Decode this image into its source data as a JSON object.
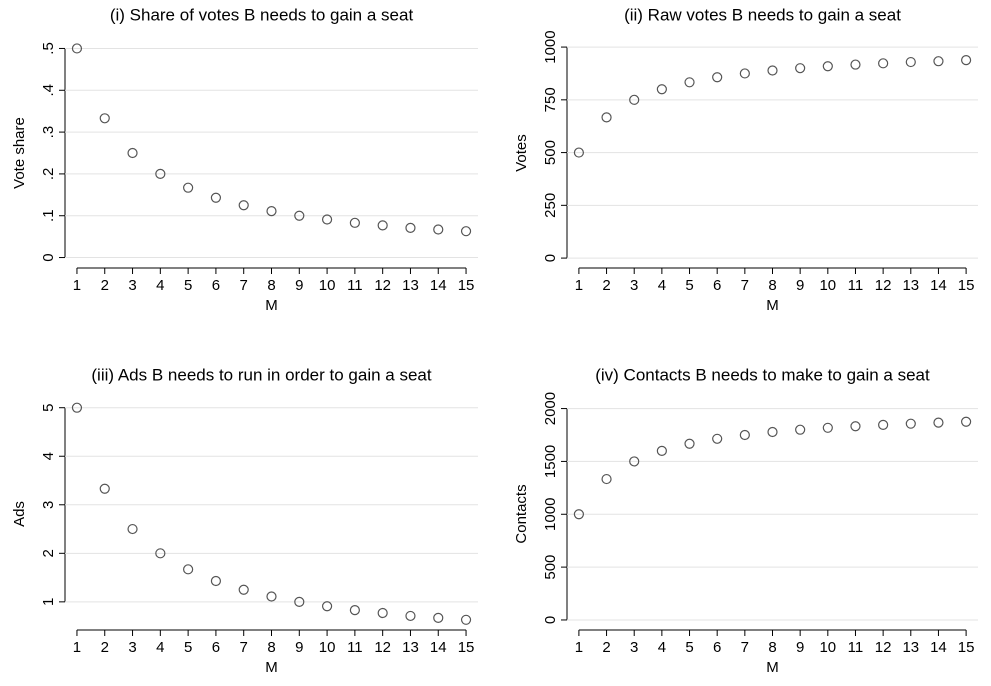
{
  "chart_data": [
    {
      "type": "scatter",
      "title": "(i) Share of votes B needs to gain a seat",
      "xlabel": "M",
      "ylabel": "Vote share",
      "x": [
        1,
        2,
        3,
        4,
        5,
        6,
        7,
        8,
        9,
        10,
        11,
        12,
        13,
        14,
        15
      ],
      "series": [
        {
          "color": "#555555",
          "values": [
            0.5,
            0.333,
            0.25,
            0.2,
            0.167,
            0.143,
            0.125,
            0.111,
            0.1,
            0.091,
            0.083,
            0.077,
            0.071,
            0.067,
            0.063
          ]
        }
      ],
      "xlim": [
        0.57,
        15.43
      ],
      "xticks": [
        1,
        2,
        3,
        4,
        5,
        6,
        7,
        8,
        9,
        10,
        11,
        12,
        13,
        14,
        15
      ],
      "ylim": [
        -0.025,
        0.525
      ],
      "yticks": [
        0,
        {
          "value": 0.1,
          "label": ".1"
        },
        {
          "value": 0.2,
          "label": ".2"
        },
        {
          "value": 0.3,
          "label": ".3"
        },
        {
          "value": 0.4,
          "label": ".4"
        },
        {
          "value": 0.5,
          "label": ".5"
        }
      ],
      "grid": true
    },
    {
      "type": "scatter",
      "title": "(ii) Raw votes B needs to gain a seat",
      "xlabel": "M",
      "ylabel": "Votes",
      "x": [
        1,
        2,
        3,
        4,
        5,
        6,
        7,
        8,
        9,
        10,
        11,
        12,
        13,
        14,
        15
      ],
      "series": [
        {
          "color": "#555555",
          "values": [
            500,
            667,
            750,
            800,
            833,
            857,
            875,
            889,
            900,
            909,
            917,
            923,
            929,
            933,
            938
          ]
        }
      ],
      "xlim": [
        0.57,
        15.43
      ],
      "xticks": [
        1,
        2,
        3,
        4,
        5,
        6,
        7,
        8,
        9,
        10,
        11,
        12,
        13,
        14,
        15
      ],
      "ylim": [
        -47,
        1043
      ],
      "yticks": [
        0,
        250,
        500,
        750,
        1000
      ],
      "grid": true
    },
    {
      "type": "scatter",
      "title": "(iii) Ads B needs to run in order to gain a seat",
      "xlabel": "M",
      "ylabel": "Ads",
      "x": [
        1,
        2,
        3,
        4,
        5,
        6,
        7,
        8,
        9,
        10,
        11,
        12,
        13,
        14,
        15
      ],
      "series": [
        {
          "color": "#555555",
          "values": [
            5,
            3.33,
            2.5,
            2,
            1.67,
            1.43,
            1.25,
            1.11,
            1,
            0.91,
            0.83,
            0.77,
            0.71,
            0.67,
            0.63
          ]
        }
      ],
      "xlim": [
        0.57,
        15.43
      ],
      "xticks": [
        1,
        2,
        3,
        4,
        5,
        6,
        7,
        8,
        9,
        10,
        11,
        12,
        13,
        14,
        15
      ],
      "ylim": [
        0.42,
        5.2
      ],
      "yticks": [
        1,
        2,
        3,
        4,
        5
      ],
      "grid": true
    },
    {
      "type": "scatter",
      "title": "(iv) Contacts B needs to make to gain a seat",
      "xlabel": "M",
      "ylabel": "Contacts",
      "x": [
        1,
        2,
        3,
        4,
        5,
        6,
        7,
        8,
        9,
        10,
        11,
        12,
        13,
        14,
        15
      ],
      "series": [
        {
          "color": "#555555",
          "values": [
            1000,
            1333,
            1500,
            1600,
            1667,
            1714,
            1750,
            1778,
            1800,
            1818,
            1833,
            1846,
            1857,
            1867,
            1875
          ]
        }
      ],
      "xlim": [
        0.57,
        15.43
      ],
      "xticks": [
        1,
        2,
        3,
        4,
        5,
        6,
        7,
        8,
        9,
        10,
        11,
        12,
        13,
        14,
        15
      ],
      "ylim": [
        -95,
        2100
      ],
      "yticks": [
        0,
        500,
        1000,
        1500,
        2000
      ],
      "grid": true
    }
  ]
}
